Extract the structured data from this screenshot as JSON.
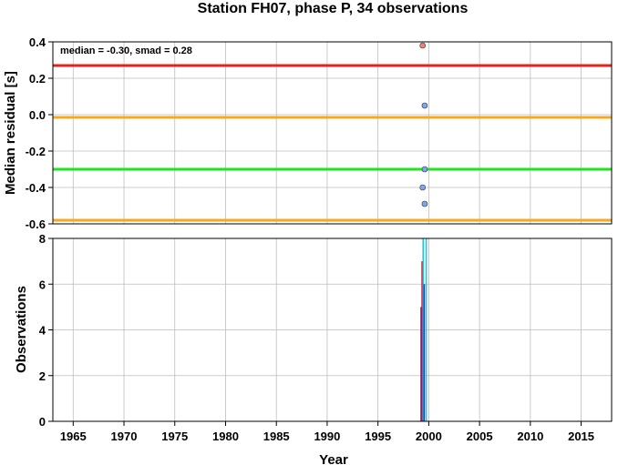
{
  "title": "Station FH07, phase P, 34 observations",
  "colors": {
    "upper_sigma": "#e8221a",
    "inner_band": "#f7a823",
    "median": "#1ee61e",
    "point_normal": "#7aa7f0",
    "point_outlier": "#f08080",
    "bar_red": "#c8102e",
    "bar_blue": "#1f3bd6",
    "bar_cyan": "#1ec8e6"
  },
  "chart_data": [
    {
      "type": "scatter",
      "ylabel": "Median residual [s]",
      "annotation": "median = -0.30, smad = 0.28",
      "xlim": [
        1963,
        2018
      ],
      "ylim": [
        -0.6,
        0.4
      ],
      "yticks": [
        0.4,
        0.2,
        0.0,
        -0.2,
        -0.4,
        -0.6
      ],
      "ytick_labels": [
        "0.4",
        "0.2",
        "0.0",
        "-0.2",
        "-0.4",
        "-0.6"
      ],
      "grid": true,
      "hlines": [
        {
          "name": "upper",
          "y": 0.27,
          "color": "#e8221a"
        },
        {
          "name": "band-upper",
          "y": -0.015,
          "color": "#f7a823"
        },
        {
          "name": "median",
          "y": -0.3,
          "color": "#1ee61e"
        },
        {
          "name": "band-lower",
          "y": -0.58,
          "color": "#f7a823"
        }
      ],
      "points": [
        {
          "x": 1999.4,
          "y": 0.38,
          "outlier": true
        },
        {
          "x": 1999.6,
          "y": 0.05,
          "outlier": false
        },
        {
          "x": 1999.6,
          "y": -0.3,
          "outlier": false
        },
        {
          "x": 1999.4,
          "y": -0.4,
          "outlier": false
        },
        {
          "x": 1999.6,
          "y": -0.49,
          "outlier": false
        }
      ]
    },
    {
      "type": "bar",
      "xlabel": "Year",
      "ylabel": "Observations",
      "xlim": [
        1963,
        2018
      ],
      "ylim": [
        0,
        8
      ],
      "xticks": [
        1965,
        1970,
        1975,
        1980,
        1985,
        1990,
        1995,
        2000,
        2005,
        2010,
        2015
      ],
      "xtick_labels": [
        "1965",
        "1970",
        "1975",
        "1980",
        "1985",
        "1990",
        "1995",
        "2000",
        "2005",
        "2010",
        "2015"
      ],
      "yticks": [
        0,
        2,
        4,
        6,
        8
      ],
      "ytick_labels": [
        "0",
        "2",
        "4",
        "6",
        "8"
      ],
      "grid": true,
      "bars": [
        {
          "x": 1999.25,
          "value": 5,
          "color": "#1f3bd6"
        },
        {
          "x": 1999.35,
          "value": 7,
          "color": "#c8102e"
        },
        {
          "x": 1999.45,
          "value": 8,
          "color": "#1ec8e6"
        },
        {
          "x": 1999.55,
          "value": 6,
          "color": "#1f3bd6"
        },
        {
          "x": 1999.75,
          "value": 8,
          "color": "#1ec8e6"
        }
      ]
    }
  ]
}
